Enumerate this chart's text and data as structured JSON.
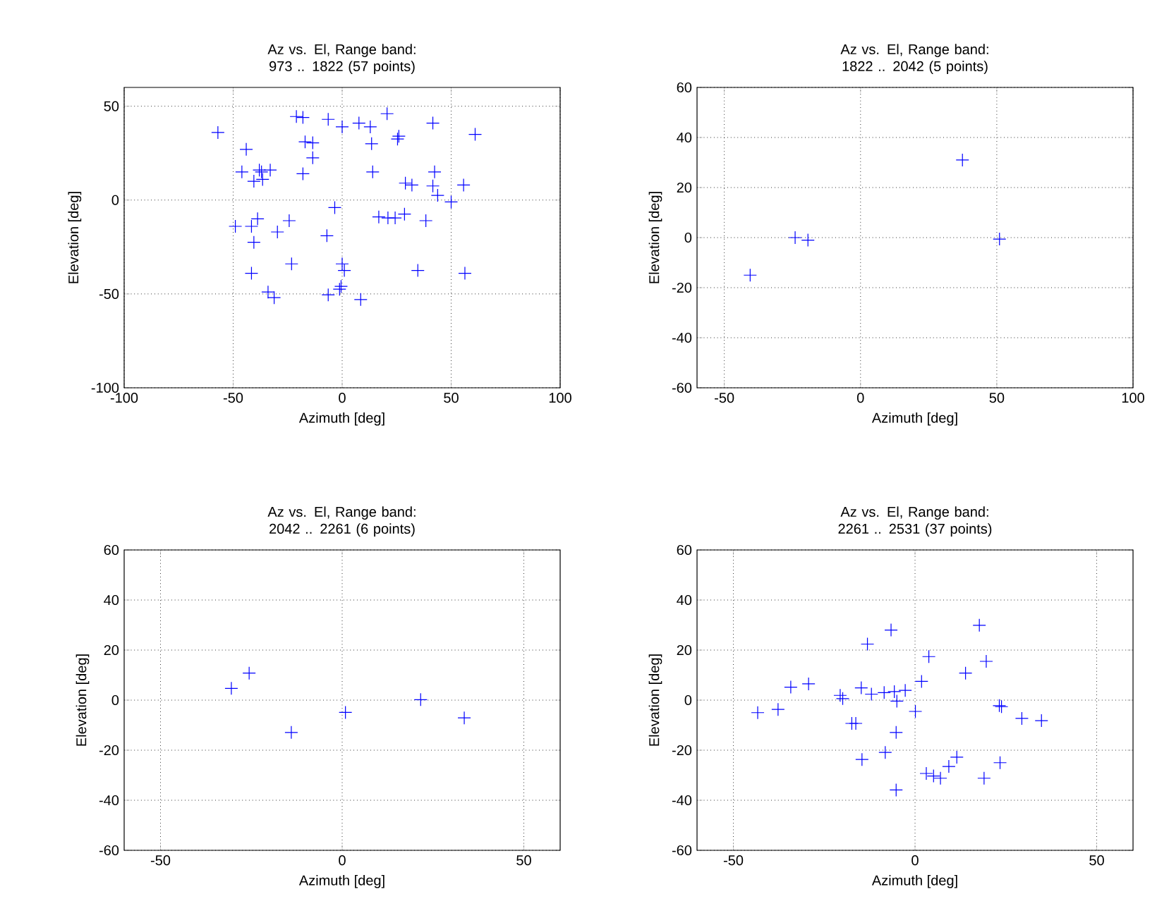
{
  "chart_data": [
    {
      "type": "scatter",
      "title": "Az vs. El, Range band: 973 .. 1822 (57 points)",
      "xlabel": "Azimuth [deg]",
      "ylabel": "Elevation [deg]",
      "color": "#0000ff",
      "marker": "cross",
      "grid": true,
      "xlim": [
        -100,
        100
      ],
      "ylim": [
        -100,
        60
      ],
      "xticks": [
        -100,
        -50,
        0,
        50,
        100
      ],
      "yticks": [
        -100,
        -50,
        0,
        50
      ],
      "x": [
        -57,
        -44,
        -46,
        -40.5,
        -37,
        -36.5,
        -33,
        -38,
        -21,
        -18,
        -6.4,
        0,
        7.7,
        12.9,
        20.6,
        41.6,
        61,
        -17,
        -13.5,
        -13.5,
        -18,
        13.5,
        14,
        26,
        25.4,
        42.4,
        29,
        32,
        41.6,
        43.8,
        50,
        55.7,
        -3.4,
        -24.3,
        -29.7,
        -38.8,
        -41.6,
        -49,
        -40.5,
        -7,
        16.8,
        21,
        24.3,
        28.6,
        38.4,
        -23.2,
        -41.6,
        0,
        1,
        34.7,
        56.3,
        -34,
        -31.2,
        -6.4,
        -1.2,
        -0.5,
        8.5
      ],
      "values": [
        36,
        27,
        15,
        10,
        15,
        11,
        16,
        16,
        44.5,
        44,
        43,
        39,
        41,
        39,
        46,
        41,
        35,
        31,
        30.5,
        22.5,
        14,
        30,
        15,
        34,
        32.5,
        15,
        9,
        8,
        7.5,
        2.5,
        -1,
        8,
        -4,
        -11,
        -17,
        -10,
        -14,
        -14,
        -22.5,
        -19,
        -9,
        -9.5,
        -9.5,
        -7.5,
        -11,
        -34,
        -39,
        -34,
        -37.5,
        -37.5,
        -39,
        -49,
        -52,
        -50.5,
        -47.5,
        -46,
        -53
      ]
    },
    {
      "type": "scatter",
      "title": "Az vs. El, Range band: 1822 .. 2042 (5 points)",
      "xlabel": "Azimuth [deg]",
      "ylabel": "Elevation [deg]",
      "color": "#0000ff",
      "marker": "cross",
      "grid": true,
      "xlim": [
        -60,
        100
      ],
      "ylim": [
        -60,
        60
      ],
      "xticks": [
        -50,
        0,
        50,
        100
      ],
      "yticks": [
        -60,
        -40,
        -20,
        0,
        20,
        40,
        60
      ],
      "x": [
        -40.5,
        -24,
        -19.3,
        37.4,
        51
      ],
      "values": [
        -15,
        0,
        -1,
        31,
        -0.6
      ]
    },
    {
      "type": "scatter",
      "title": "Az vs. El, Range band: 2042 .. 2261 (6 points)",
      "xlabel": "Azimuth [deg]",
      "ylabel": "Elevation [deg]",
      "color": "#0000ff",
      "marker": "cross",
      "grid": true,
      "xlim": [
        -60,
        60
      ],
      "ylim": [
        -60,
        60
      ],
      "xticks": [
        -50,
        0,
        50
      ],
      "yticks": [
        -60,
        -40,
        -20,
        0,
        20,
        40,
        60
      ],
      "x": [
        -30.5,
        -25.6,
        -14,
        0.9,
        21.6,
        33.6
      ],
      "values": [
        4.7,
        10.8,
        -12.9,
        -4.9,
        0.2,
        -7.1
      ]
    },
    {
      "type": "scatter",
      "title": "Az vs. El, Range band: 2261 .. 2531 (37 points)",
      "xlabel": "Azimuth [deg]",
      "ylabel": "Elevation [deg]",
      "color": "#0000ff",
      "marker": "cross",
      "grid": true,
      "xlim": [
        -60,
        60
      ],
      "ylim": [
        -60,
        60
      ],
      "xticks": [
        -50,
        0,
        50
      ],
      "yticks": [
        -60,
        -40,
        -20,
        0,
        20,
        40,
        60
      ],
      "x": [
        -43.3,
        -37.7,
        -34.2,
        -29.3,
        -20.6,
        -19.9,
        -17.4,
        -16.3,
        -14.8,
        -12,
        -13.1,
        -6.6,
        -8.5,
        -5.7,
        -5,
        -2.7,
        -5.2,
        -8.2,
        -14.6,
        -5.2,
        0.1,
        1.8,
        3.8,
        3.1,
        5.1,
        7,
        9.3,
        11.5,
        13.9,
        17.7,
        19.6,
        19,
        23.2,
        23.8,
        23.4,
        29.4,
        34.8
      ],
      "values": [
        -5,
        -3.7,
        5.2,
        6.5,
        1.9,
        0.6,
        -9.3,
        -9.3,
        4.9,
        2.4,
        22.4,
        28,
        3,
        3.4,
        -0.4,
        3.9,
        -12.9,
        -20.9,
        -23.7,
        -35.9,
        -4.5,
        7.5,
        17.4,
        -29.3,
        -30.3,
        -31.2,
        -26.5,
        -22.8,
        10.8,
        29.9,
        15.5,
        -31.2,
        -2.2,
        -2.6,
        -25,
        -7.3,
        -8.2
      ]
    }
  ]
}
